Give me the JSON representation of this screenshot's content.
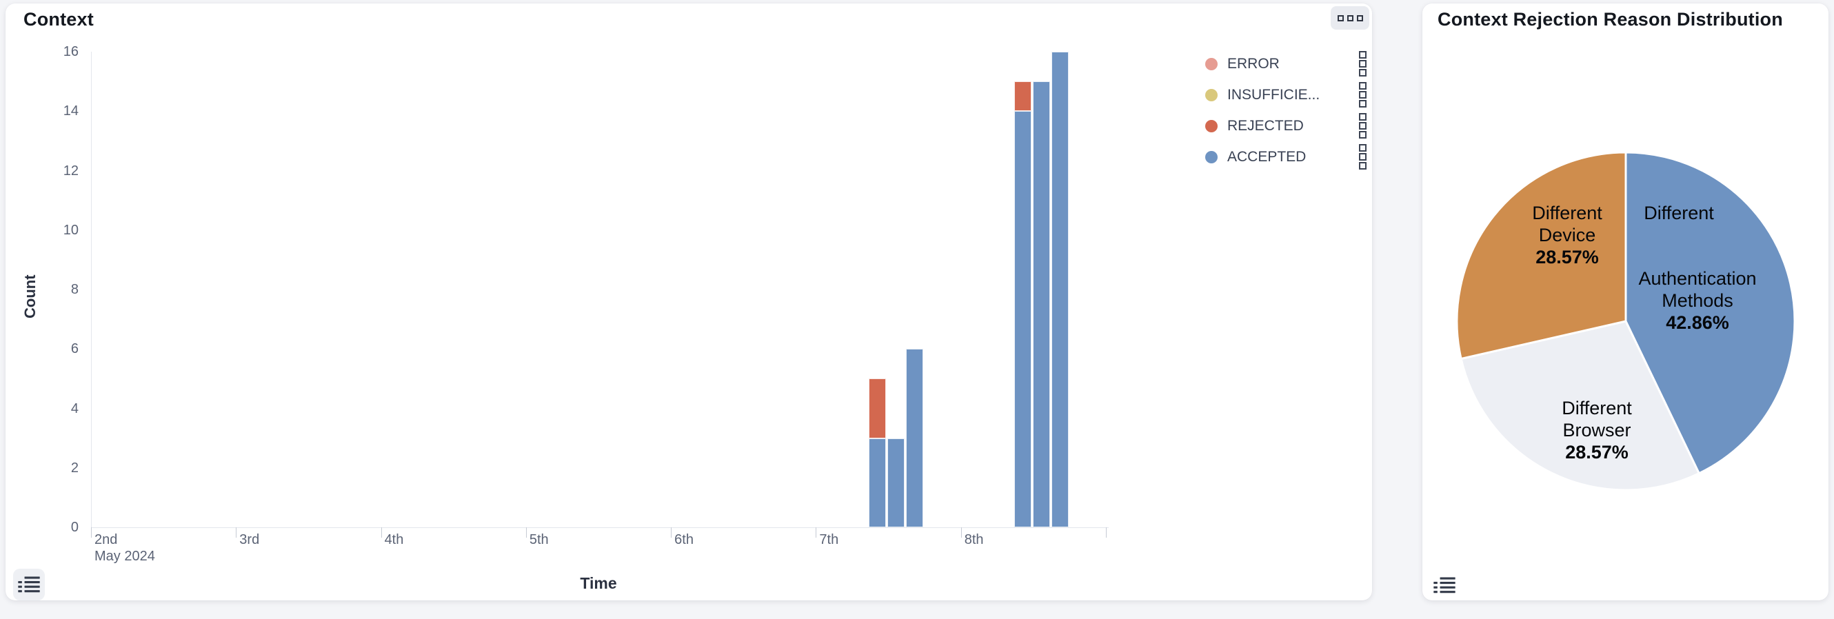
{
  "page": {
    "background": "#f4f5f8"
  },
  "left_panel": {
    "title": "Context",
    "legend": {
      "items": [
        {
          "label": "ERROR",
          "color": "#e69c92"
        },
        {
          "label": "INSUFFICIE...",
          "color": "#d9c87c"
        },
        {
          "label": "REJECTED",
          "color": "#d3684f"
        },
        {
          "label": "ACCEPTED",
          "color": "#6e93c2"
        }
      ]
    }
  },
  "right_panel": {
    "title": "Context Rejection Reason Distribution"
  },
  "chart_data": [
    {
      "type": "bar",
      "stacked": true,
      "title": "Context",
      "xlabel": "Time",
      "ylabel": "Count",
      "ylim": [
        0,
        16
      ],
      "y_ticks": [
        0,
        2,
        4,
        6,
        8,
        10,
        12,
        14,
        16
      ],
      "x_ticks": [
        "2nd",
        "3rd",
        "4th",
        "5th",
        "6th",
        "7th",
        "8th",
        ""
      ],
      "x_subtitle": "May 2024",
      "grid": false,
      "legend_position": "right",
      "series_names": [
        "ERROR",
        "INSUFFICIE...",
        "REJECTED",
        "ACCEPTED"
      ],
      "bars": [
        {
          "date": "7th",
          "slot": 0,
          "segments": [
            {
              "series": "ACCEPTED",
              "value": 3
            },
            {
              "series": "REJECTED",
              "value": 2
            }
          ]
        },
        {
          "date": "7th",
          "slot": 1,
          "segments": [
            {
              "series": "ACCEPTED",
              "value": 3
            }
          ]
        },
        {
          "date": "7th",
          "slot": 2,
          "segments": [
            {
              "series": "ACCEPTED",
              "value": 6
            }
          ]
        },
        {
          "date": "8th",
          "slot": 0,
          "segments": [
            {
              "series": "ACCEPTED",
              "value": 14
            },
            {
              "series": "REJECTED",
              "value": 1
            }
          ]
        },
        {
          "date": "8th",
          "slot": 1,
          "segments": [
            {
              "series": "ACCEPTED",
              "value": 15
            }
          ]
        },
        {
          "date": "8th",
          "slot": 2,
          "segments": [
            {
              "series": "ACCEPTED",
              "value": 16
            }
          ]
        }
      ]
    },
    {
      "type": "pie",
      "title": "Context Rejection Reason Distribution",
      "direction": "clockwise",
      "start_angle": "top",
      "slices": [
        {
          "label": "Different Authentication Methods",
          "label_lines": [
            "Different",
            "Authentication",
            "Methods"
          ],
          "pct": 42.86,
          "pct_label": "42.86%",
          "color": "#6e93c2"
        },
        {
          "label": "Different Browser",
          "label_lines": [
            "Different",
            "Browser"
          ],
          "pct": 28.57,
          "pct_label": "28.57%",
          "color": "#edeff4"
        },
        {
          "label": "Different Device",
          "label_lines": [
            "Different",
            "Device"
          ],
          "pct": 28.57,
          "pct_label": "28.57%",
          "color": "#cf8d4d"
        }
      ]
    }
  ]
}
